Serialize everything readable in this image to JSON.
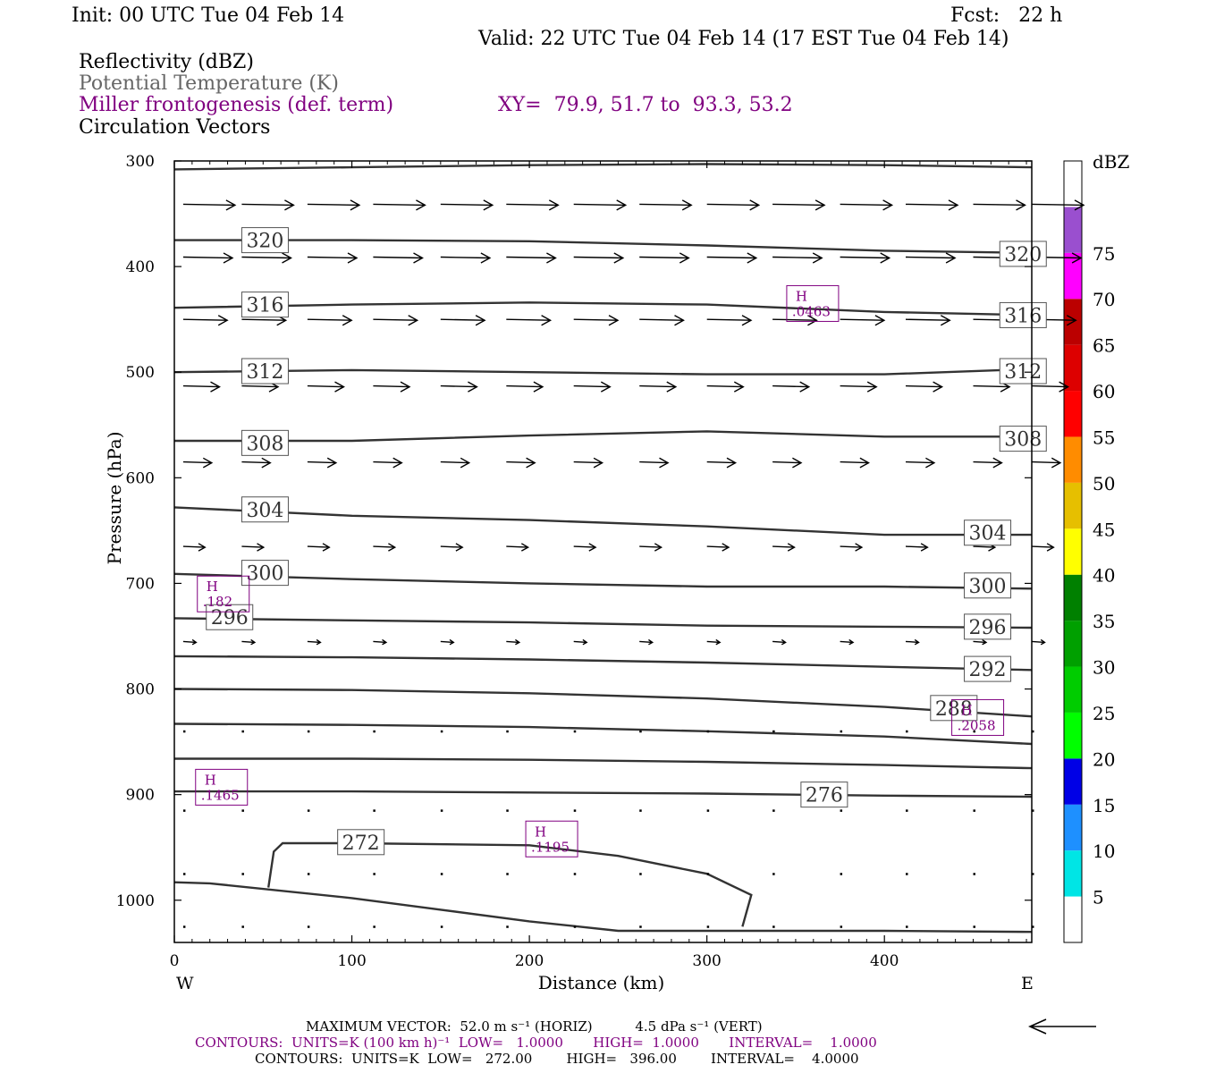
{
  "header": {
    "init": "Init: 00 UTC Tue 04 Feb 14",
    "fcst": "Fcst:   22 h",
    "valid": "Valid: 22 UTC Tue 04 Feb 14 (17 EST Tue 04 Feb 14)"
  },
  "legend_lines": {
    "reflectivity": "Reflectivity (dBZ)",
    "theta": "Potential Temperature (K)",
    "frontogenesis": "Miller frontogenesis (def. term)",
    "xy": "XY=  79.9, 51.7 to  93.3, 53.2",
    "vectors": "Circulation Vectors"
  },
  "footer": {
    "max_vector": "MAXIMUM VECTOR:  52.0 m s⁻¹ (HORIZ)          4.5 dPa s⁻¹ (VERT)",
    "contours_purple": "CONTOURS:  UNITS=K (100 km h)⁻¹  LOW=   1.0000       HIGH=  1.0000       INTERVAL=    1.0000",
    "contours_black": "CONTOURS:  UNITS=K  LOW=   272.00        HIGH=   396.00        INTERVAL=    4.0000"
  },
  "colors": {
    "theta": "#333333",
    "fronto": "#800080",
    "scale": [
      "#ffffff",
      "#00e5e5",
      "#1e90ff",
      "#0000e6",
      "#00ff00",
      "#00cc00",
      "#00a000",
      "#008000",
      "#ffff00",
      "#e6bf00",
      "#ff8c00",
      "#ff0000",
      "#dd0000",
      "#bb0000",
      "#ff00ff",
      "#9a4fcf",
      "#ffffff"
    ]
  },
  "chart_data": {
    "type": "cross-section",
    "xlabel": "Distance (km)",
    "ylabel": "Pressure (hPa)",
    "xlim": [
      0,
      483
    ],
    "ylim": [
      1040,
      300
    ],
    "x_ticks": [
      0,
      100,
      200,
      300,
      400
    ],
    "y_ticks": [
      300,
      400,
      500,
      600,
      700,
      800,
      900,
      1000
    ],
    "x_end_labels": [
      "W",
      "E"
    ],
    "colorbar": {
      "title": "dBZ",
      "levels": [
        5,
        10,
        15,
        20,
        25,
        30,
        35,
        40,
        45,
        50,
        55,
        60,
        65,
        70,
        75
      ]
    },
    "theta_contours": [
      {
        "label": "",
        "points": [
          [
            0,
            308
          ],
          [
            100,
            306
          ],
          [
            200,
            304
          ],
          [
            300,
            303
          ],
          [
            400,
            304
          ],
          [
            483,
            306
          ]
        ]
      },
      {
        "label": "320",
        "label_pos": [
          [
            38,
            375
          ],
          [
            465,
            388
          ]
        ],
        "points": [
          [
            0,
            375
          ],
          [
            100,
            375
          ],
          [
            200,
            376
          ],
          [
            300,
            380
          ],
          [
            400,
            385
          ],
          [
            483,
            387
          ]
        ]
      },
      {
        "label": "316",
        "label_pos": [
          [
            38,
            436
          ],
          [
            465,
            446
          ]
        ],
        "points": [
          [
            0,
            439
          ],
          [
            100,
            436
          ],
          [
            200,
            434
          ],
          [
            300,
            436
          ],
          [
            400,
            443
          ],
          [
            483,
            446
          ]
        ]
      },
      {
        "label": "312",
        "label_pos": [
          [
            38,
            499
          ],
          [
            465,
            499
          ]
        ],
        "points": [
          [
            0,
            500
          ],
          [
            100,
            498
          ],
          [
            200,
            500
          ],
          [
            300,
            502
          ],
          [
            400,
            502
          ],
          [
            483,
            497
          ]
        ]
      },
      {
        "label": "308",
        "label_pos": [
          [
            38,
            567
          ],
          [
            465,
            563
          ]
        ],
        "points": [
          [
            0,
            565
          ],
          [
            100,
            565
          ],
          [
            200,
            560
          ],
          [
            300,
            556
          ],
          [
            400,
            561
          ],
          [
            483,
            561
          ]
        ]
      },
      {
        "label": "304",
        "label_pos": [
          [
            38,
            630
          ],
          [
            445,
            652
          ]
        ],
        "points": [
          [
            0,
            628
          ],
          [
            100,
            636
          ],
          [
            200,
            640
          ],
          [
            300,
            646
          ],
          [
            400,
            654
          ],
          [
            483,
            654
          ]
        ]
      },
      {
        "label": "300",
        "label_pos": [
          [
            38,
            690
          ],
          [
            445,
            702
          ]
        ],
        "points": [
          [
            0,
            691
          ],
          [
            100,
            696
          ],
          [
            200,
            700
          ],
          [
            300,
            703
          ],
          [
            400,
            703
          ],
          [
            483,
            705
          ]
        ]
      },
      {
        "label": "296",
        "label_pos": [
          [
            18,
            732
          ],
          [
            445,
            741
          ]
        ],
        "points": [
          [
            0,
            733
          ],
          [
            100,
            735
          ],
          [
            200,
            737
          ],
          [
            300,
            740
          ],
          [
            400,
            741
          ],
          [
            483,
            742
          ]
        ]
      },
      {
        "label": "292",
        "label_pos": [
          [
            445,
            781
          ]
        ],
        "points": [
          [
            0,
            769
          ],
          [
            100,
            770
          ],
          [
            200,
            772
          ],
          [
            300,
            775
          ],
          [
            400,
            779
          ],
          [
            483,
            782
          ]
        ]
      },
      {
        "label": "288",
        "label_pos": [
          [
            426,
            818
          ]
        ],
        "points": [
          [
            0,
            800
          ],
          [
            100,
            801
          ],
          [
            200,
            804
          ],
          [
            300,
            809
          ],
          [
            400,
            817
          ],
          [
            483,
            826
          ]
        ]
      },
      {
        "label": "",
        "points": [
          [
            0,
            833
          ],
          [
            100,
            834
          ],
          [
            200,
            836
          ],
          [
            300,
            840
          ],
          [
            400,
            845
          ],
          [
            483,
            852
          ]
        ]
      },
      {
        "label": "",
        "points": [
          [
            0,
            866
          ],
          [
            100,
            866
          ],
          [
            200,
            867
          ],
          [
            300,
            869
          ],
          [
            400,
            872
          ],
          [
            483,
            875
          ]
        ]
      },
      {
        "label": "276",
        "label_pos": [
          [
            353,
            900
          ]
        ],
        "points": [
          [
            0,
            897
          ],
          [
            100,
            897
          ],
          [
            200,
            898
          ],
          [
            300,
            899
          ],
          [
            400,
            901
          ],
          [
            483,
            902
          ]
        ]
      },
      {
        "label": "272",
        "label_pos": [
          [
            92,
            945
          ]
        ],
        "points": [
          [
            53,
            988
          ],
          [
            56,
            954
          ],
          [
            61,
            946
          ],
          [
            100,
            946
          ],
          [
            200,
            948
          ],
          [
            250,
            958
          ],
          [
            300,
            975
          ],
          [
            325,
            995
          ],
          [
            320,
            1025
          ]
        ]
      },
      {
        "label": "",
        "points": [
          [
            0,
            983
          ],
          [
            20,
            984
          ],
          [
            100,
            998
          ],
          [
            200,
            1020
          ],
          [
            250,
            1029
          ],
          [
            300,
            1029
          ],
          [
            400,
            1029
          ],
          [
            483,
            1030
          ]
        ]
      }
    ],
    "fronto_maxima": [
      {
        "label": "H",
        "value": ".0463",
        "x": 350,
        "p": 435
      },
      {
        "label": "H",
        "value": ".182",
        "x": 18,
        "p": 710
      },
      {
        "label": "H",
        "value": ".2058",
        "x": 443,
        "p": 827
      },
      {
        "label": "H",
        "value": ".1465",
        "x": 17,
        "p": 893
      },
      {
        "label": "H",
        "value": ".1195",
        "x": 203,
        "p": 942
      }
    ],
    "vector_rows": [
      {
        "p": 341,
        "u": 1.0
      },
      {
        "p": 391,
        "u": 0.95
      },
      {
        "p": 450,
        "u": 0.85
      },
      {
        "p": 513,
        "u": 0.7
      },
      {
        "p": 585,
        "u": 0.55
      },
      {
        "p": 665,
        "u": 0.42
      },
      {
        "p": 755,
        "u": 0.25
      },
      {
        "p": 840,
        "u": 0.05
      },
      {
        "p": 915,
        "u": 0.03
      },
      {
        "p": 975,
        "u": 0.02
      },
      {
        "p": 1025,
        "u": 0.02
      }
    ],
    "vector_x": [
      5,
      38,
      75,
      112,
      150,
      187,
      225,
      262,
      300,
      337,
      375,
      412,
      450,
      483
    ]
  }
}
